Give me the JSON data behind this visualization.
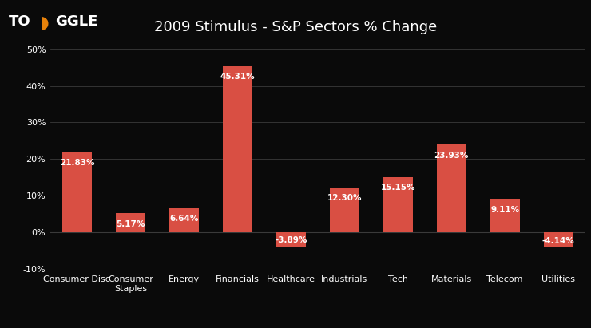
{
  "title": "2009 Stimulus - S&P Sectors % Change",
  "categories": [
    "Consumer Disc",
    "Consumer\nStaples",
    "Energy",
    "Financials",
    "Healthcare",
    "Industrials",
    "Tech",
    "Materials",
    "Telecom",
    "Utilities"
  ],
  "values": [
    21.83,
    5.17,
    6.64,
    45.31,
    -3.89,
    12.3,
    15.15,
    23.93,
    9.11,
    -4.14
  ],
  "labels": [
    "21.83%",
    "5.17%",
    "6.64%",
    "45.31%",
    "-3.89%",
    "12.30%",
    "15.15%",
    "23.93%",
    "9.11%",
    "-4.14%"
  ],
  "bar_color": "#d94f43",
  "background_color": "#0a0a0a",
  "text_color": "#ffffff",
  "grid_color": "#3a3a3a",
  "ylim": [
    -10,
    50
  ],
  "yticks": [
    -10,
    0,
    10,
    20,
    30,
    40,
    50
  ],
  "title_fontsize": 13,
  "tick_fontsize": 8,
  "label_fontsize": 7.5,
  "logo_fontsize": 13,
  "logo_orange": "#E8820A"
}
